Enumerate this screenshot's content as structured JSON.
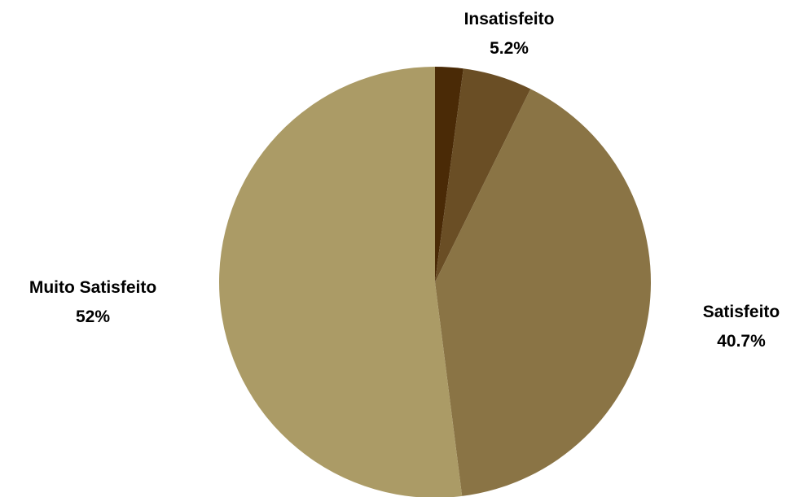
{
  "chart_data": {
    "type": "pie",
    "start_angle_deg": 0,
    "direction": "clockwise",
    "slices": [
      {
        "name": "",
        "value": 2.1,
        "value_label": "",
        "color": "#4a2a06"
      },
      {
        "name": "Insatisfeito",
        "value": 5.2,
        "value_label": "5.2%",
        "color": "#6a4e25"
      },
      {
        "name": "Satisfeito",
        "value": 40.7,
        "value_label": "40.7%",
        "color": "#8a7445"
      },
      {
        "name": "Muito Satisfeito",
        "value": 52.0,
        "value_label": "52%",
        "color": "#ab9b66"
      }
    ]
  }
}
